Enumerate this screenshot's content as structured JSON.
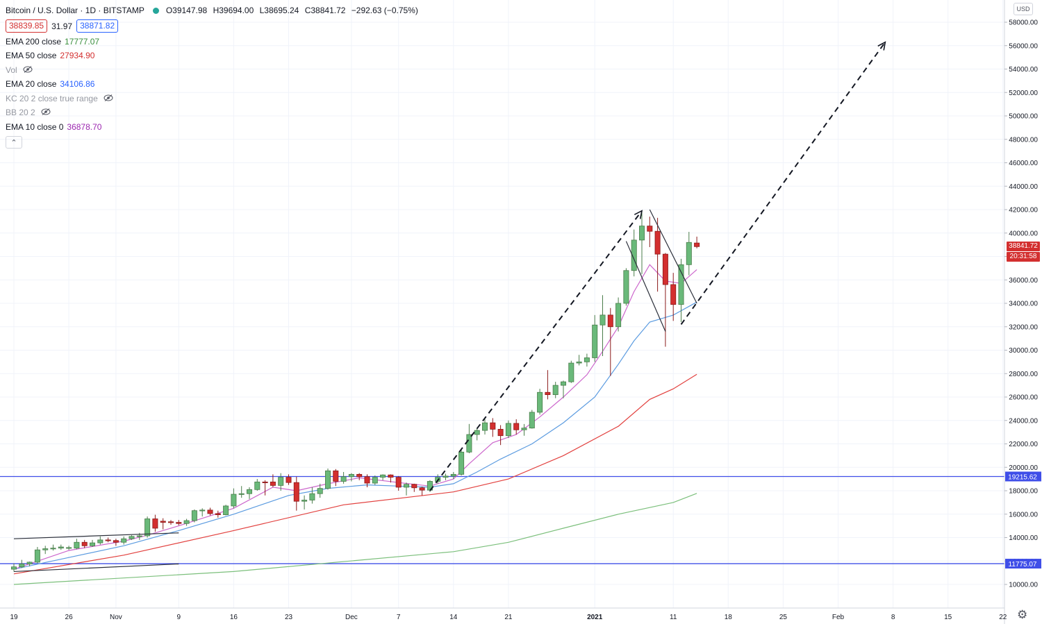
{
  "legend": {
    "title": "Bitcoin / U.S. Dollar · 1D · BITSTAMP",
    "ohlc": {
      "open": "O39147.98",
      "high": "H39694.00",
      "low": "L38695.24",
      "close": "C38841.72",
      "change": "−292.63 (−0.75%)"
    },
    "bid": "38839.85",
    "spread": "31.97",
    "ask": "38871.82",
    "indicators": [
      {
        "label": "EMA 200 close",
        "value": "17777.07",
        "color": "#388e3c",
        "hidden": false
      },
      {
        "label": "EMA 50 close",
        "value": "27934.90",
        "color": "#d32f2f",
        "hidden": false
      },
      {
        "label": "Vol",
        "value": "",
        "color": "",
        "hidden": true
      },
      {
        "label": "EMA 20 close",
        "value": "34106.86",
        "color": "#2962ff",
        "hidden": false
      },
      {
        "label": "KC 20 2 close true range",
        "value": "",
        "color": "",
        "hidden": true
      },
      {
        "label": "BB 20 2",
        "value": "",
        "color": "",
        "hidden": true
      },
      {
        "label": "EMA 10 close 0",
        "value": "36878.70",
        "color": "#9c27b0",
        "hidden": false
      }
    ]
  },
  "price_scale": {
    "currency": "USD",
    "last_price": "38841.72",
    "countdown": "20:31:58",
    "hlines": [
      {
        "label": "19215.62",
        "value": 19215.62
      },
      {
        "label": "11775.07",
        "value": 11775.07
      }
    ]
  },
  "colors": {
    "up": "#26a69a",
    "up_body": "#6ab97a",
    "down": "#d32f2f",
    "grid": "#f0f3fa",
    "hline": "#3f4ee8",
    "ema10": "#cc66cc",
    "ema20": "#5b9be0",
    "ema50": "#e2403e",
    "ema200": "#7bbf7b"
  },
  "chart_data": {
    "type": "candlestick",
    "title": "Bitcoin / U.S. Dollar · 1D · BITSTAMP",
    "y_axis": {
      "min": 10000,
      "max": 58000,
      "step": 2000,
      "position": "right",
      "ticks": [
        "10000.00",
        "12000.00",
        "14000.00",
        "16000.00",
        "18000.00",
        "20000.00",
        "22000.00",
        "24000.00",
        "26000.00",
        "28000.00",
        "30000.00",
        "32000.00",
        "34000.00",
        "36000.00",
        "38000.00",
        "40000.00",
        "42000.00",
        "44000.00",
        "46000.00",
        "48000.00",
        "50000.00",
        "52000.00",
        "54000.00",
        "56000.00",
        "58000.00"
      ]
    },
    "x_axis": {
      "labels": [
        {
          "day": 0,
          "label": "19"
        },
        {
          "day": 7,
          "label": "26"
        },
        {
          "day": 13,
          "label": "Nov"
        },
        {
          "day": 21,
          "label": "9"
        },
        {
          "day": 28,
          "label": "16"
        },
        {
          "day": 35,
          "label": "23"
        },
        {
          "day": 43,
          "label": "Dec"
        },
        {
          "day": 49,
          "label": "7"
        },
        {
          "day": 56,
          "label": "14"
        },
        {
          "day": 63,
          "label": "21"
        },
        {
          "day": 74,
          "label": "2021"
        },
        {
          "day": 84,
          "label": "11"
        },
        {
          "day": 91,
          "label": "18"
        },
        {
          "day": 98,
          "label": "25"
        },
        {
          "day": 105,
          "label": "Feb"
        },
        {
          "day": 112,
          "label": "8"
        },
        {
          "day": 119,
          "label": "15"
        },
        {
          "day": 126,
          "label": "22"
        }
      ]
    },
    "candles": [
      {
        "d": 0,
        "o": 11300,
        "h": 11800,
        "l": 11100,
        "c": 11500
      },
      {
        "d": 1,
        "o": 11500,
        "h": 12100,
        "l": 11400,
        "c": 11750
      },
      {
        "d": 2,
        "o": 11750,
        "h": 11950,
        "l": 11550,
        "c": 11900
      },
      {
        "d": 3,
        "o": 11900,
        "h": 13200,
        "l": 11800,
        "c": 12950
      },
      {
        "d": 4,
        "o": 12950,
        "h": 13300,
        "l": 12600,
        "c": 13050
      },
      {
        "d": 5,
        "o": 13050,
        "h": 13400,
        "l": 12900,
        "c": 13100
      },
      {
        "d": 6,
        "o": 13100,
        "h": 13400,
        "l": 12950,
        "c": 13200
      },
      {
        "d": 7,
        "o": 13100,
        "h": 13300,
        "l": 12950,
        "c": 13150
      },
      {
        "d": 8,
        "o": 13100,
        "h": 13900,
        "l": 13000,
        "c": 13600
      },
      {
        "d": 9,
        "o": 13600,
        "h": 13800,
        "l": 13100,
        "c": 13300
      },
      {
        "d": 10,
        "o": 13300,
        "h": 13800,
        "l": 13200,
        "c": 13550
      },
      {
        "d": 11,
        "o": 13550,
        "h": 14100,
        "l": 13400,
        "c": 13800
      },
      {
        "d": 12,
        "o": 13800,
        "h": 14000,
        "l": 13600,
        "c": 13750
      },
      {
        "d": 13,
        "o": 13750,
        "h": 13900,
        "l": 13300,
        "c": 13600
      },
      {
        "d": 14,
        "o": 13600,
        "h": 14100,
        "l": 13400,
        "c": 13900
      },
      {
        "d": 15,
        "o": 13900,
        "h": 14200,
        "l": 13800,
        "c": 14100
      },
      {
        "d": 16,
        "o": 14100,
        "h": 14400,
        "l": 13800,
        "c": 14150
      },
      {
        "d": 17,
        "o": 14150,
        "h": 15800,
        "l": 14000,
        "c": 15600
      },
      {
        "d": 18,
        "o": 15600,
        "h": 15950,
        "l": 14500,
        "c": 14800
      },
      {
        "d": 19,
        "o": 15400,
        "h": 15650,
        "l": 14700,
        "c": 15300
      },
      {
        "d": 20,
        "o": 15350,
        "h": 15500,
        "l": 15100,
        "c": 15300
      },
      {
        "d": 21,
        "o": 15300,
        "h": 15500,
        "l": 15050,
        "c": 15200
      },
      {
        "d": 22,
        "o": 15200,
        "h": 15600,
        "l": 15000,
        "c": 15450
      },
      {
        "d": 23,
        "o": 15450,
        "h": 16400,
        "l": 15300,
        "c": 16300
      },
      {
        "d": 24,
        "o": 16300,
        "h": 16500,
        "l": 15800,
        "c": 16350
      },
      {
        "d": 25,
        "o": 16350,
        "h": 16550,
        "l": 15900,
        "c": 16050
      },
      {
        "d": 26,
        "o": 16050,
        "h": 16300,
        "l": 15700,
        "c": 15950
      },
      {
        "d": 27,
        "o": 15950,
        "h": 16800,
        "l": 15900,
        "c": 16700
      },
      {
        "d": 28,
        "o": 16700,
        "h": 18200,
        "l": 16500,
        "c": 17700
      },
      {
        "d": 29,
        "o": 17700,
        "h": 18400,
        "l": 17400,
        "c": 17750
      },
      {
        "d": 30,
        "o": 17750,
        "h": 18300,
        "l": 17300,
        "c": 18100
      },
      {
        "d": 31,
        "o": 18100,
        "h": 19000,
        "l": 18000,
        "c": 18750
      },
      {
        "d": 32,
        "o": 18750,
        "h": 18900,
        "l": 17600,
        "c": 18700
      },
      {
        "d": 33,
        "o": 18750,
        "h": 19400,
        "l": 18300,
        "c": 18450
      },
      {
        "d": 34,
        "o": 18450,
        "h": 19500,
        "l": 18000,
        "c": 19150
      },
      {
        "d": 35,
        "o": 19150,
        "h": 19400,
        "l": 18500,
        "c": 18700
      },
      {
        "d": 36,
        "o": 18700,
        "h": 19200,
        "l": 16300,
        "c": 17100
      },
      {
        "d": 37,
        "o": 17100,
        "h": 17600,
        "l": 16400,
        "c": 17200
      },
      {
        "d": 38,
        "o": 17200,
        "h": 18300,
        "l": 16900,
        "c": 17750
      },
      {
        "d": 39,
        "o": 17750,
        "h": 18600,
        "l": 17400,
        "c": 18200
      },
      {
        "d": 40,
        "o": 18200,
        "h": 19900,
        "l": 18100,
        "c": 19700
      },
      {
        "d": 41,
        "o": 19700,
        "h": 19850,
        "l": 18400,
        "c": 18800
      },
      {
        "d": 42,
        "o": 18800,
        "h": 19600,
        "l": 18600,
        "c": 19200
      },
      {
        "d": 43,
        "o": 19200,
        "h": 19500,
        "l": 18800,
        "c": 19400
      },
      {
        "d": 44,
        "o": 19400,
        "h": 19500,
        "l": 18900,
        "c": 19200
      },
      {
        "d": 45,
        "o": 19200,
        "h": 19400,
        "l": 18300,
        "c": 18650
      },
      {
        "d": 46,
        "o": 18650,
        "h": 19300,
        "l": 18500,
        "c": 19150
      },
      {
        "d": 47,
        "o": 19150,
        "h": 19400,
        "l": 18900,
        "c": 19350
      },
      {
        "d": 48,
        "o": 19350,
        "h": 19400,
        "l": 18700,
        "c": 19150
      },
      {
        "d": 49,
        "o": 19150,
        "h": 19250,
        "l": 18000,
        "c": 18300
      },
      {
        "d": 50,
        "o": 18300,
        "h": 18700,
        "l": 17600,
        "c": 18550
      },
      {
        "d": 51,
        "o": 18550,
        "h": 18600,
        "l": 17900,
        "c": 18250
      },
      {
        "d": 52,
        "o": 18250,
        "h": 18350,
        "l": 17600,
        "c": 18050
      },
      {
        "d": 53,
        "o": 18050,
        "h": 18900,
        "l": 17900,
        "c": 18800
      },
      {
        "d": 54,
        "o": 18800,
        "h": 19400,
        "l": 18600,
        "c": 19150
      },
      {
        "d": 55,
        "o": 19150,
        "h": 19450,
        "l": 18900,
        "c": 19250
      },
      {
        "d": 56,
        "o": 19250,
        "h": 19600,
        "l": 19000,
        "c": 19400
      },
      {
        "d": 57,
        "o": 19400,
        "h": 21600,
        "l": 19300,
        "c": 21300
      },
      {
        "d": 58,
        "o": 21300,
        "h": 23700,
        "l": 21200,
        "c": 22800
      },
      {
        "d": 59,
        "o": 22800,
        "h": 23300,
        "l": 22300,
        "c": 23150
      },
      {
        "d": 60,
        "o": 23150,
        "h": 24100,
        "l": 22800,
        "c": 23800
      },
      {
        "d": 61,
        "o": 23800,
        "h": 24200,
        "l": 22600,
        "c": 23250
      },
      {
        "d": 62,
        "o": 23250,
        "h": 23600,
        "l": 21900,
        "c": 22700
      },
      {
        "d": 63,
        "o": 22700,
        "h": 24000,
        "l": 22500,
        "c": 23750
      },
      {
        "d": 64,
        "o": 23750,
        "h": 24100,
        "l": 22800,
        "c": 23200
      },
      {
        "d": 65,
        "o": 23200,
        "h": 23700,
        "l": 22700,
        "c": 23350
      },
      {
        "d": 66,
        "o": 23350,
        "h": 24900,
        "l": 23300,
        "c": 24700
      },
      {
        "d": 67,
        "o": 24700,
        "h": 26700,
        "l": 24500,
        "c": 26400
      },
      {
        "d": 68,
        "o": 26400,
        "h": 28300,
        "l": 25800,
        "c": 26200
      },
      {
        "d": 69,
        "o": 26200,
        "h": 27300,
        "l": 25900,
        "c": 27000
      },
      {
        "d": 70,
        "o": 27000,
        "h": 27400,
        "l": 25900,
        "c": 27300
      },
      {
        "d": 71,
        "o": 27300,
        "h": 29100,
        "l": 27200,
        "c": 28900
      },
      {
        "d": 72,
        "o": 28900,
        "h": 29600,
        "l": 28700,
        "c": 29000
      },
      {
        "d": 73,
        "o": 29000,
        "h": 29700,
        "l": 28600,
        "c": 29350
      },
      {
        "d": 74,
        "o": 29350,
        "h": 33000,
        "l": 29000,
        "c": 32150
      },
      {
        "d": 75,
        "o": 32150,
        "h": 34700,
        "l": 29500,
        "c": 33000
      },
      {
        "d": 76,
        "o": 33000,
        "h": 33600,
        "l": 27800,
        "c": 32000
      },
      {
        "d": 77,
        "o": 32000,
        "h": 34500,
        "l": 31600,
        "c": 34000
      },
      {
        "d": 78,
        "o": 34000,
        "h": 37000,
        "l": 33800,
        "c": 36800
      },
      {
        "d": 79,
        "o": 36800,
        "h": 40300,
        "l": 36300,
        "c": 39400
      },
      {
        "d": 80,
        "o": 39400,
        "h": 41900,
        "l": 36500,
        "c": 40600
      },
      {
        "d": 81,
        "o": 40600,
        "h": 41400,
        "l": 38800,
        "c": 40150
      },
      {
        "d": 82,
        "o": 40150,
        "h": 41300,
        "l": 35000,
        "c": 38200
      },
      {
        "d": 83,
        "o": 38200,
        "h": 38300,
        "l": 30300,
        "c": 35600
      },
      {
        "d": 84,
        "o": 35600,
        "h": 36600,
        "l": 32500,
        "c": 33900
      },
      {
        "d": 85,
        "o": 33900,
        "h": 37800,
        "l": 32400,
        "c": 37300
      },
      {
        "d": 86,
        "o": 37300,
        "h": 40100,
        "l": 36400,
        "c": 39200
      },
      {
        "d": 87,
        "o": 39150,
        "h": 39694,
        "l": 38695,
        "c": 38842
      }
    ],
    "ema10": [
      [
        0,
        11300
      ],
      [
        7,
        12900
      ],
      [
        14,
        13700
      ],
      [
        17,
        14200
      ],
      [
        21,
        15000
      ],
      [
        28,
        16500
      ],
      [
        33,
        18300
      ],
      [
        36,
        18000
      ],
      [
        40,
        18600
      ],
      [
        44,
        19100
      ],
      [
        49,
        18700
      ],
      [
        53,
        18400
      ],
      [
        56,
        19000
      ],
      [
        58,
        20300
      ],
      [
        61,
        22100
      ],
      [
        64,
        22800
      ],
      [
        67,
        24300
      ],
      [
        70,
        26000
      ],
      [
        73,
        27900
      ],
      [
        75,
        29900
      ],
      [
        77,
        32000
      ],
      [
        79,
        35000
      ],
      [
        81,
        37300
      ],
      [
        83,
        35900
      ],
      [
        85,
        35700
      ],
      [
        87,
        36879
      ]
    ],
    "ema20": [
      [
        0,
        11300
      ],
      [
        7,
        12300
      ],
      [
        14,
        13300
      ],
      [
        21,
        14600
      ],
      [
        28,
        16000
      ],
      [
        35,
        17600
      ],
      [
        40,
        18200
      ],
      [
        45,
        18500
      ],
      [
        49,
        18400
      ],
      [
        53,
        18300
      ],
      [
        56,
        18600
      ],
      [
        59,
        19600
      ],
      [
        62,
        20700
      ],
      [
        66,
        22000
      ],
      [
        70,
        23800
      ],
      [
        74,
        26000
      ],
      [
        77,
        28800
      ],
      [
        79,
        30800
      ],
      [
        81,
        32400
      ],
      [
        84,
        33000
      ],
      [
        87,
        34107
      ]
    ],
    "ema50": [
      [
        0,
        10900
      ],
      [
        14,
        12500
      ],
      [
        28,
        14600
      ],
      [
        42,
        16800
      ],
      [
        56,
        17900
      ],
      [
        63,
        19000
      ],
      [
        70,
        21000
      ],
      [
        77,
        23500
      ],
      [
        81,
        25800
      ],
      [
        84,
        26700
      ],
      [
        87,
        27935
      ]
    ],
    "ema200": [
      [
        0,
        10000
      ],
      [
        28,
        11100
      ],
      [
        56,
        12800
      ],
      [
        63,
        13600
      ],
      [
        70,
        14800
      ],
      [
        77,
        16000
      ],
      [
        84,
        17000
      ],
      [
        87,
        17777
      ]
    ],
    "drawings": [
      {
        "type": "dashed-arrow",
        "from": [
          53,
          18000
        ],
        "to": [
          80,
          41900
        ]
      },
      {
        "type": "trendline",
        "from": [
          0,
          13900
        ],
        "to": [
          21,
          14400
        ]
      },
      {
        "type": "trendline",
        "from": [
          0,
          11100
        ],
        "to": [
          21,
          11750
        ]
      },
      {
        "type": "trendline",
        "from": [
          78,
          39300
        ],
        "to": [
          83,
          31600
        ]
      },
      {
        "type": "trendline",
        "from": [
          81,
          42000
        ],
        "to": [
          87,
          34000
        ]
      },
      {
        "type": "dashed-arrow",
        "from": [
          85,
          32200
        ],
        "to": [
          111,
          56300
        ]
      }
    ]
  }
}
